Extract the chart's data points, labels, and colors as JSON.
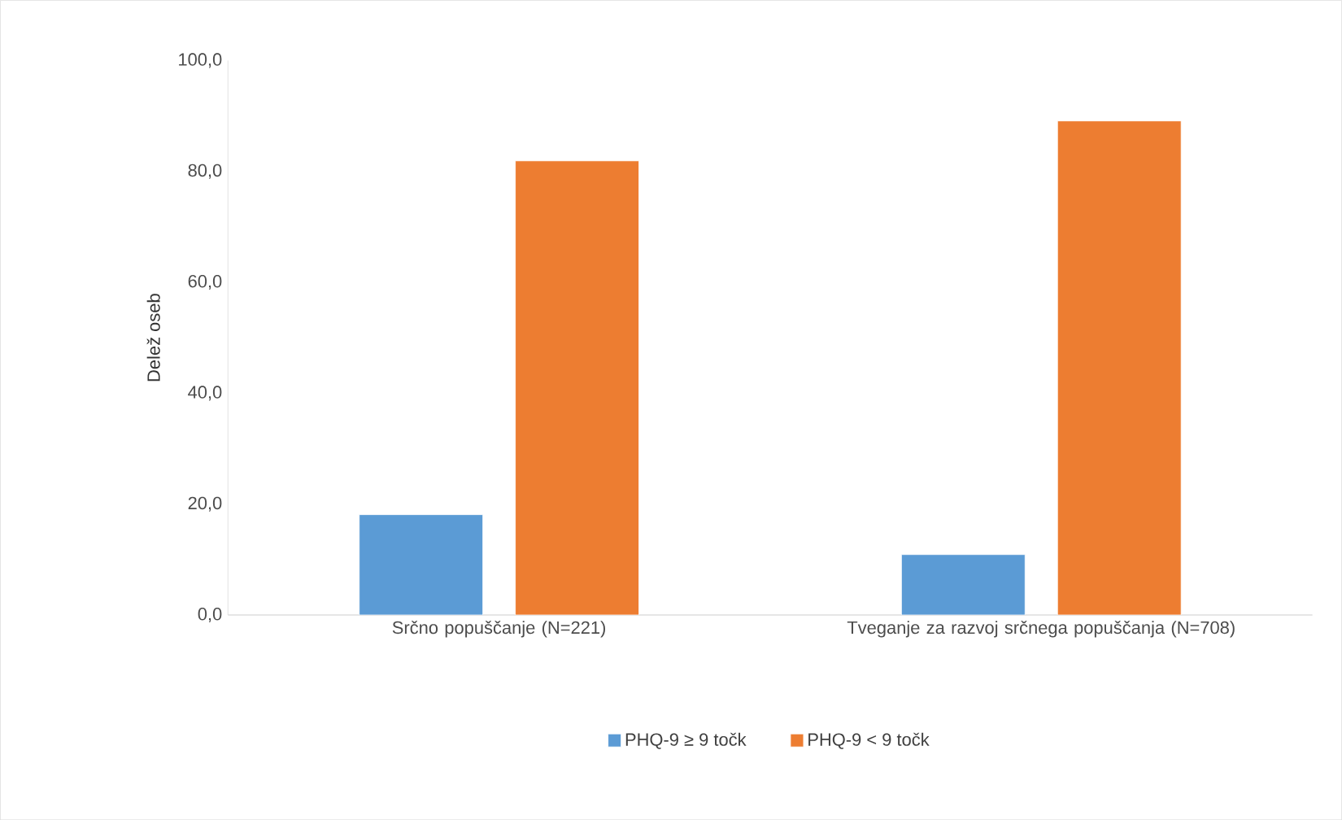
{
  "chart_data": {
    "type": "bar",
    "ylabel": "Delež oseb",
    "categories": [
      "Srčno popuščanje (N=221)",
      "Tveganje za razvoj srčnega popuščanja (N=708)"
    ],
    "series": [
      {
        "name": "PHQ-9  ≥ 9 točk",
        "color": "#5b9bd5",
        "values": [
          18.1,
          10.9
        ]
      },
      {
        "name": "PHQ-9 < 9 točk",
        "color": "#ed7d31",
        "values": [
          81.9,
          89.1
        ]
      }
    ],
    "ylim": [
      0,
      100
    ],
    "yticks": [
      {
        "value": 0,
        "label": "0,0"
      },
      {
        "value": 20,
        "label": "20,0"
      },
      {
        "value": 40,
        "label": "40,0"
      },
      {
        "value": 60,
        "label": "60,0"
      },
      {
        "value": 80,
        "label": "80,0"
      },
      {
        "value": 100,
        "label": "100,0"
      }
    ],
    "grid": false,
    "legend": "bottom"
  }
}
